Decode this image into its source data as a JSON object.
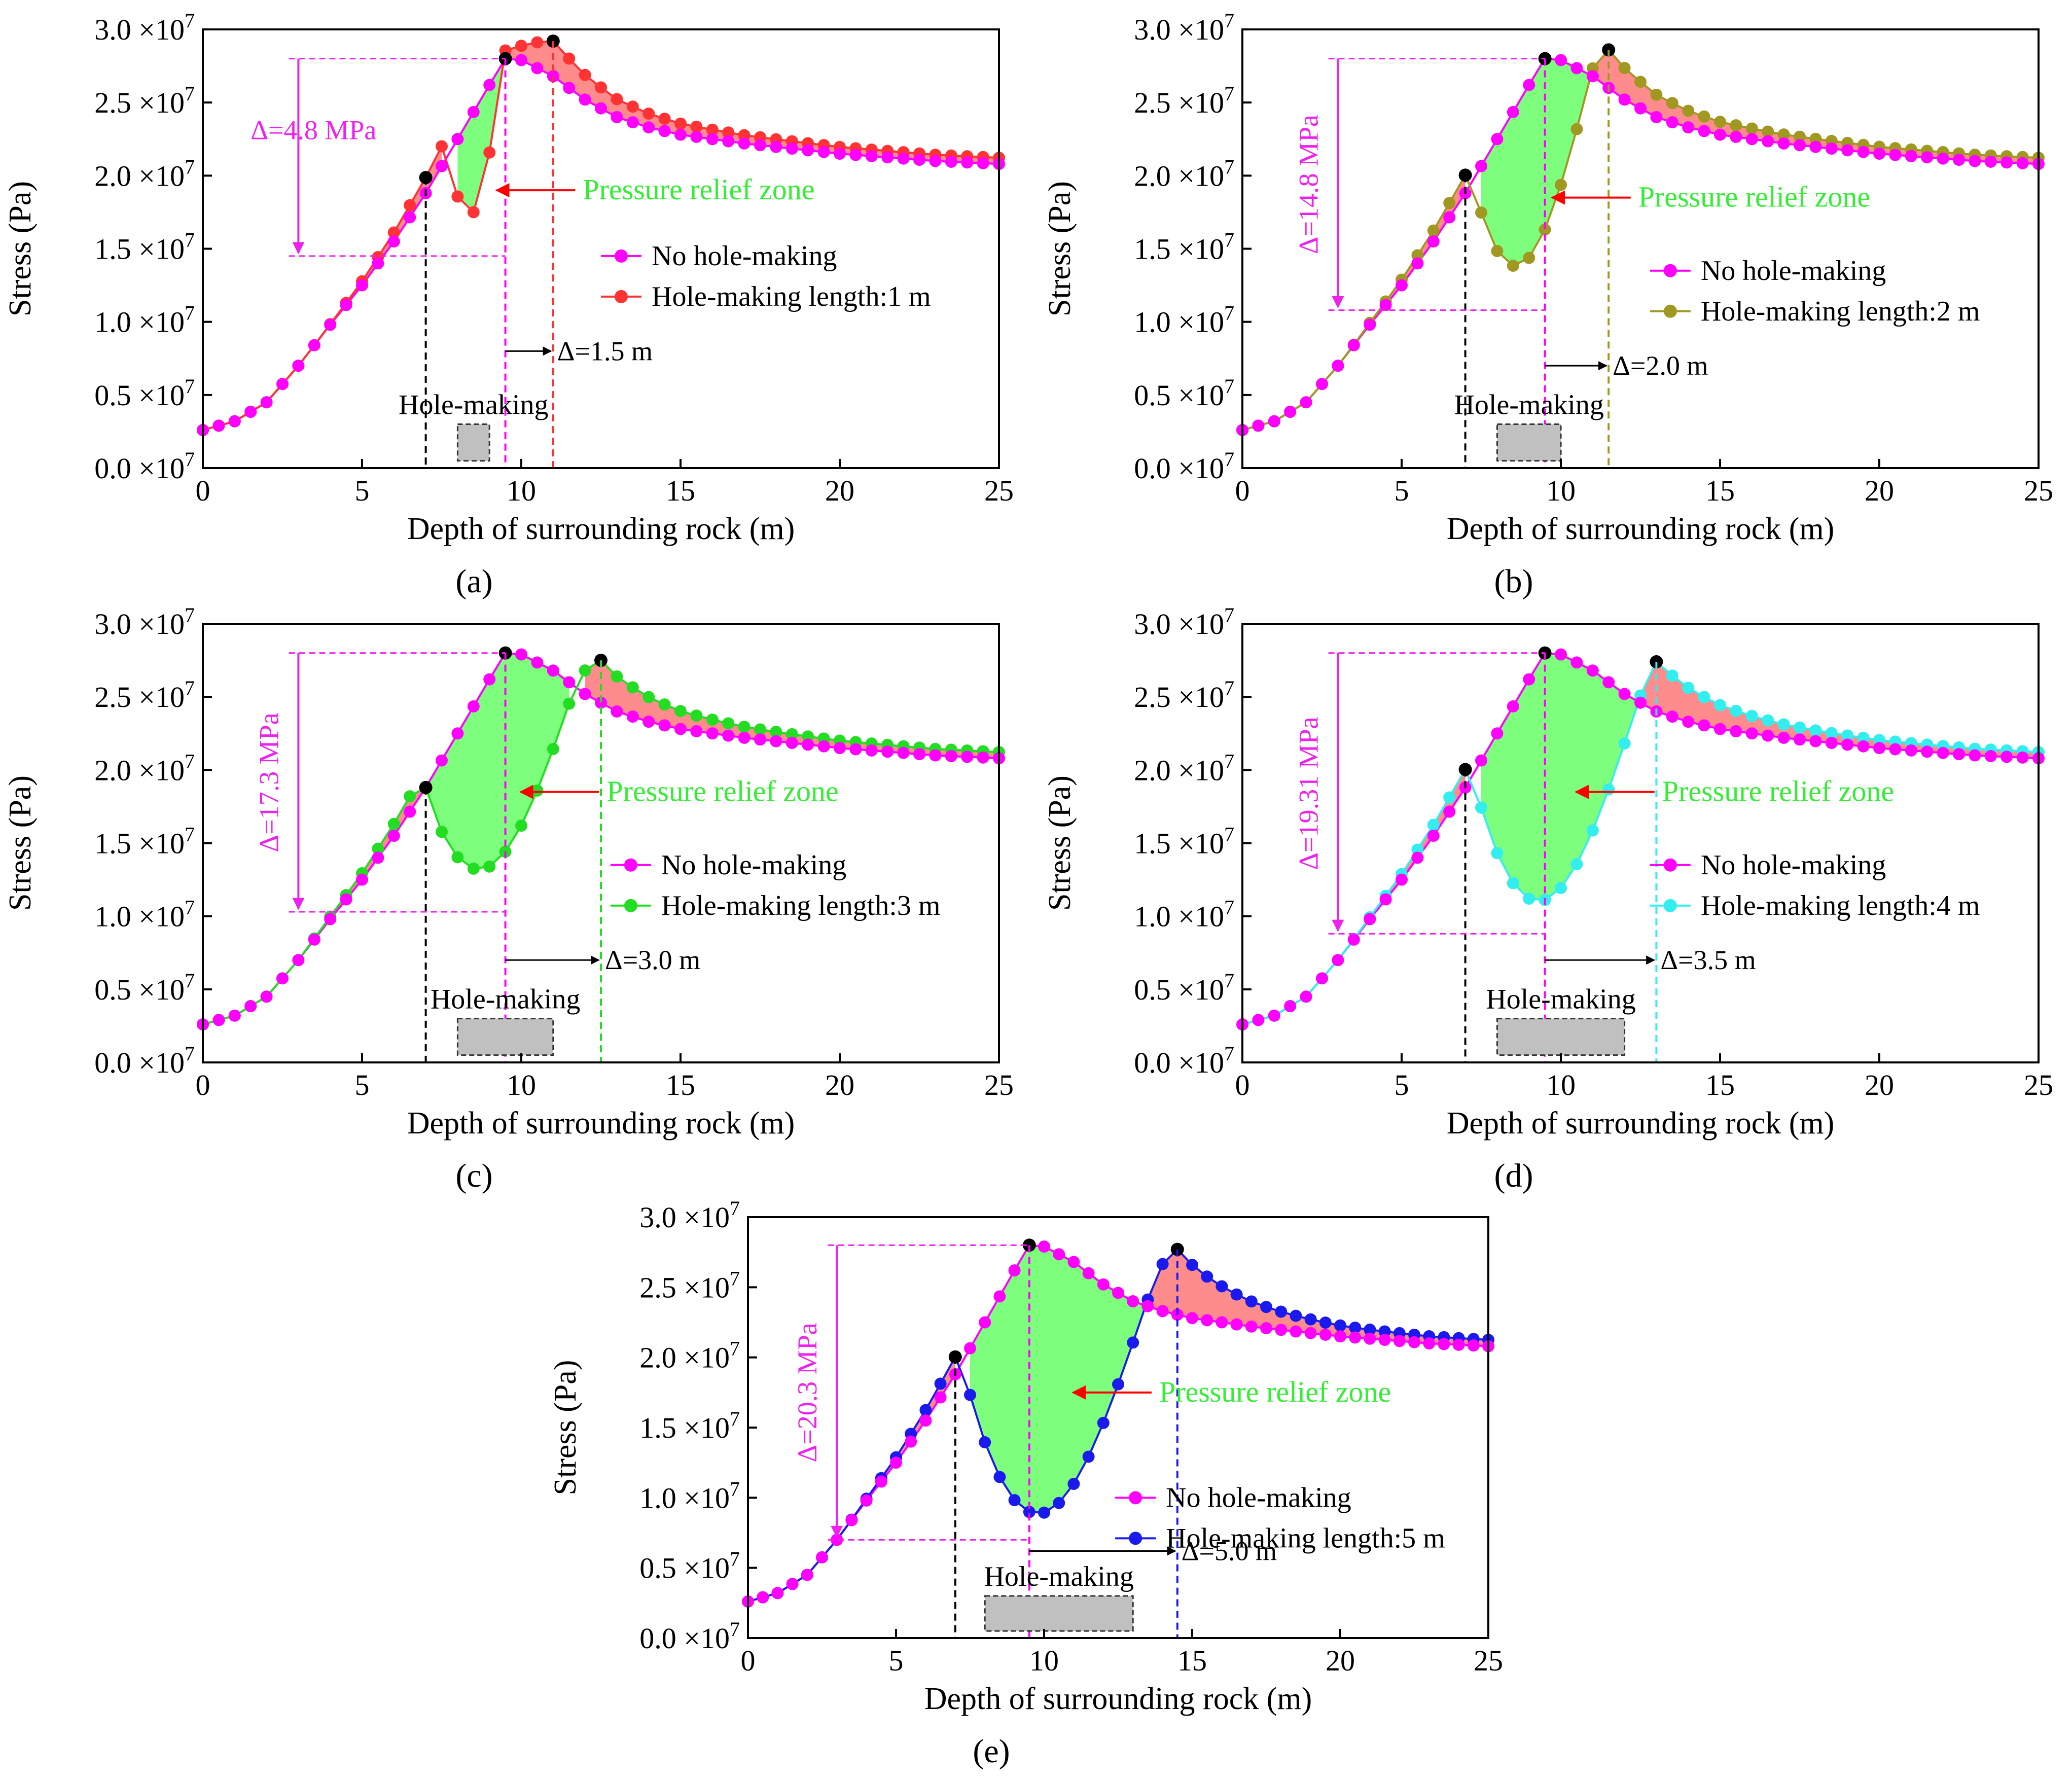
{
  "figure": {
    "xlabel": "Depth of surrounding rock (m)",
    "ylabel": "Stress (Pa)",
    "base_legend_label": "No hole-making",
    "pressure_relief_label": "Pressure relief zone",
    "hole_making_label": "Hole-making",
    "x_ticks": [
      "0",
      "5",
      "10",
      "15",
      "20",
      "25"
    ],
    "y_ticks": [
      "0.0",
      "0.5",
      "1.0",
      "1.5",
      "2.0",
      "2.5",
      "3.0"
    ],
    "y_tick_exponent": "×10",
    "y_tick_power": "7"
  },
  "colors": {
    "base": "#ff00ff",
    "relief_fill": "#66ff66",
    "increase_fill": "#ff6666",
    "hole_box": "#c0c0c0",
    "relief_label": "#33ee33",
    "arrow": "#ff0000",
    "delta_text": "#ee22ee"
  },
  "chart_data": [
    {
      "type": "line",
      "panel": "(a)",
      "xlim": [
        0,
        25
      ],
      "ylim": [
        0,
        30000000.0
      ],
      "grid": false,
      "legend_position": "right",
      "series": [
        {
          "name": "No hole-making",
          "color": "#ff00ff"
        },
        {
          "name": "Hole-making length:1 m",
          "color": "#ff3333"
        }
      ],
      "hole_making_range": [
        8,
        9
      ],
      "relief_range": [
        7.75,
        9.5
      ],
      "relief_min": 14500000.0,
      "modified_peak": {
        "x": 11.0,
        "y": 29200000.0
      },
      "base_peak": {
        "x": 9.5,
        "y": 28000000.0
      },
      "stress_drop_label": "Δ=4.8 MPa",
      "shift_label": "Δ=1.5 m"
    },
    {
      "type": "line",
      "panel": "(b)",
      "xlim": [
        0,
        25
      ],
      "ylim": [
        0,
        30000000.0
      ],
      "grid": false,
      "legend_position": "right",
      "series": [
        {
          "name": "No hole-making",
          "color": "#ff00ff"
        },
        {
          "name": "Hole-making length:2 m",
          "color": "#a09820"
        }
      ],
      "hole_making_range": [
        8,
        10
      ],
      "relief_range": [
        7.25,
        11.0
      ],
      "relief_min": 10800000.0,
      "modified_peak": {
        "x": 11.5,
        "y": 28600000.0
      },
      "base_peak": {
        "x": 9.5,
        "y": 28000000.0
      },
      "stress_drop_label": "Δ=14.8 MPa",
      "shift_label": "Δ=2.0 m"
    },
    {
      "type": "line",
      "panel": "(c)",
      "xlim": [
        0,
        25
      ],
      "ylim": [
        0,
        30000000.0
      ],
      "grid": false,
      "legend_position": "right",
      "series": [
        {
          "name": "No hole-making",
          "color": "#ff00ff"
        },
        {
          "name": "Hole-making length:3 m",
          "color": "#22dd22"
        }
      ],
      "hole_making_range": [
        8,
        11
      ],
      "relief_range": [
        7.0,
        11.75
      ],
      "relief_min": 10300000.0,
      "modified_peak": {
        "x": 12.5,
        "y": 27500000.0
      },
      "base_peak": {
        "x": 9.5,
        "y": 28000000.0
      },
      "stress_drop_label": "Δ=17.3 MPa",
      "shift_label": "Δ=3.0 m"
    },
    {
      "type": "line",
      "panel": "(d)",
      "xlim": [
        0,
        25
      ],
      "ylim": [
        0,
        30000000.0
      ],
      "grid": false,
      "legend_position": "right",
      "series": [
        {
          "name": "No hole-making",
          "color": "#ff00ff"
        },
        {
          "name": "Hole-making length:4 m",
          "color": "#33eeee"
        }
      ],
      "hole_making_range": [
        8,
        12
      ],
      "relief_range": [
        7.25,
        12.5
      ],
      "relief_min": 8800000.0,
      "modified_peak": {
        "x": 13.0,
        "y": 27400000.0
      },
      "base_peak": {
        "x": 9.5,
        "y": 28000000.0
      },
      "stress_drop_label": "Δ=19.31 MPa",
      "shift_label": "Δ=3.5 m"
    },
    {
      "type": "line",
      "panel": "(e)",
      "xlim": [
        0,
        25
      ],
      "ylim": [
        0,
        30000000.0
      ],
      "grid": false,
      "legend_position": "right",
      "series": [
        {
          "name": "No hole-making",
          "color": "#ff00ff"
        },
        {
          "name": "Hole-making length:5 m",
          "color": "#1a1aee"
        }
      ],
      "hole_making_range": [
        8,
        13
      ],
      "relief_range": [
        7.25,
        13.5
      ],
      "relief_min": 7000000.0,
      "modified_peak": {
        "x": 14.5,
        "y": 27700000.0
      },
      "base_peak": {
        "x": 9.5,
        "y": 28000000.0
      },
      "stress_drop_label": "Δ=20.3 MPa",
      "shift_label": "Δ=5.0 m"
    }
  ]
}
